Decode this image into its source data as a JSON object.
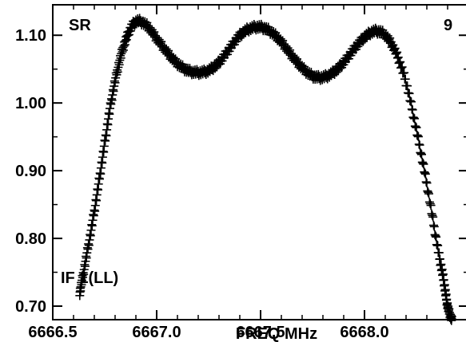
{
  "chart_data": {
    "type": "scatter",
    "title": "",
    "xlabel": "FREQ MHz",
    "ylabel": "",
    "corner_left": "SR",
    "corner_right": "9",
    "panel_label": "IF 1(LL)",
    "xlim": [
      6666.5,
      6668.5
    ],
    "ylim": [
      0.68,
      1.145
    ],
    "x_ticks": [
      6666.5,
      6667.0,
      6667.5,
      6668.0
    ],
    "x_tick_labels": [
      "6666.5",
      "6667.0",
      "6667.5",
      "6668.0"
    ],
    "y_ticks": [
      0.7,
      0.8,
      0.9,
      1.0,
      1.1
    ],
    "y_tick_labels": [
      "0.70",
      "0.80",
      "0.90",
      "1.00",
      "1.10"
    ],
    "marker": "plus",
    "color": "#000000",
    "series": [
      {
        "x": [
          6666.63,
          6666.66,
          6666.7,
          6666.74,
          6666.78,
          6666.82,
          6666.86,
          6666.9,
          6666.95,
          6667.0,
          6667.05,
          6667.1,
          6667.15,
          6667.2,
          6667.25,
          6667.3,
          6667.35,
          6667.4,
          6667.45,
          6667.5,
          6667.55,
          6667.6,
          6667.65,
          6667.7,
          6667.75,
          6667.8,
          6667.85,
          6667.9,
          6667.95,
          6668.0,
          6668.05,
          6668.1,
          6668.15,
          6668.2,
          6668.25,
          6668.3,
          6668.35,
          6668.38,
          6668.4,
          6668.42
        ],
        "y": [
          0.72,
          0.77,
          0.84,
          0.92,
          1.0,
          1.06,
          1.1,
          1.12,
          1.115,
          1.095,
          1.075,
          1.058,
          1.048,
          1.045,
          1.048,
          1.06,
          1.08,
          1.1,
          1.11,
          1.112,
          1.105,
          1.09,
          1.07,
          1.052,
          1.04,
          1.038,
          1.045,
          1.06,
          1.08,
          1.097,
          1.106,
          1.1,
          1.075,
          1.03,
          0.96,
          0.88,
          0.79,
          0.74,
          0.7,
          0.68
        ]
      }
    ]
  }
}
